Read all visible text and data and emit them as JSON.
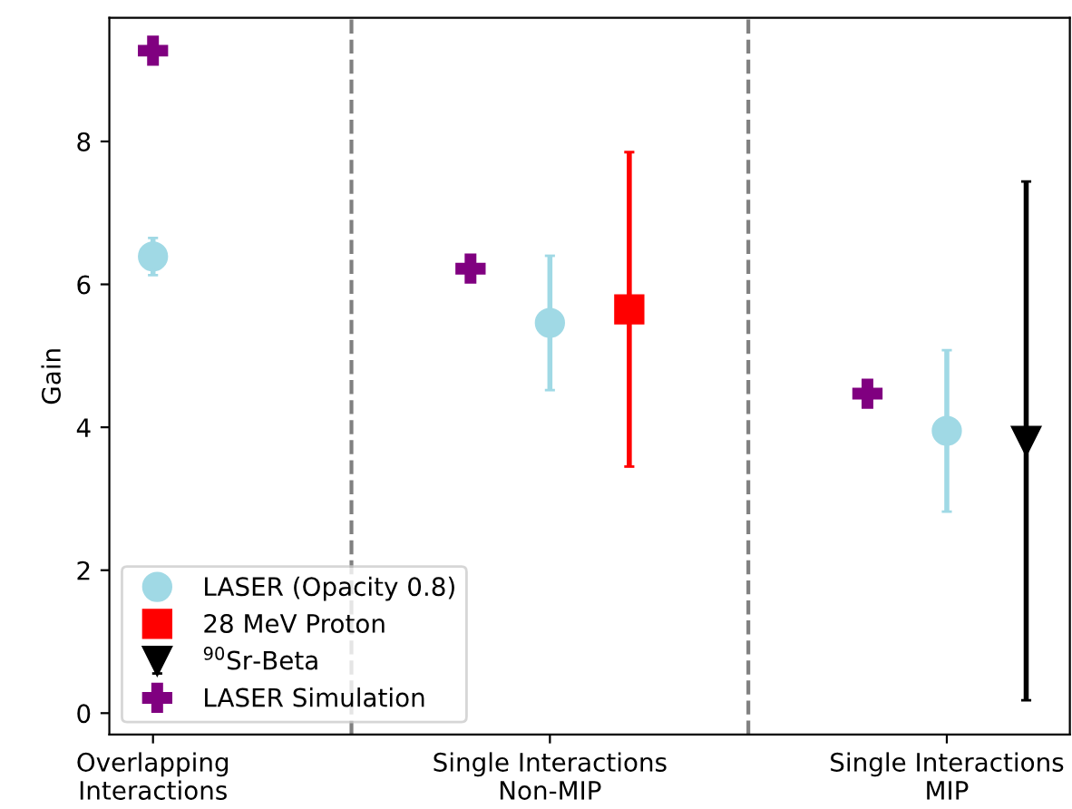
{
  "chart_data": {
    "type": "scatter",
    "ylabel": "Gain",
    "categories": [
      "Overlapping\nInteractions",
      null,
      null,
      null,
      null,
      "Single Interactions\nNon-MIP",
      null,
      null,
      null,
      null,
      "Single Interactions\nMIP",
      null
    ],
    "ylim": [
      -0.3,
      9.73
    ],
    "yticks": [
      0,
      2,
      4,
      6,
      8
    ],
    "series": [
      {
        "name": "LASER (Opacity 0.8)",
        "color": "#a0d9e5",
        "marker": "circle",
        "values": [
          6.39,
          null,
          null,
          null,
          null,
          5.46,
          null,
          null,
          null,
          null,
          3.95,
          null
        ],
        "errors": [
          0.26,
          null,
          null,
          null,
          null,
          0.94,
          null,
          null,
          null,
          null,
          1.13,
          null
        ]
      },
      {
        "name": "28 MeV Proton",
        "color": "#ff0000",
        "marker": "square",
        "values": [
          null,
          null,
          null,
          null,
          null,
          null,
          5.65,
          null,
          null,
          null,
          null,
          null
        ],
        "errors": [
          null,
          null,
          null,
          null,
          null,
          null,
          2.2,
          null,
          null,
          null,
          null,
          null
        ]
      },
      {
        "name": "$^{90}$Sr-Beta",
        "color": "#000000",
        "marker": "triangle",
        "values": [
          null,
          null,
          null,
          null,
          null,
          null,
          null,
          null,
          null,
          null,
          null,
          3.81
        ],
        "errors": [
          null,
          null,
          null,
          null,
          null,
          null,
          null,
          null,
          null,
          null,
          null,
          3.63
        ]
      },
      {
        "name": "LASER Simulation",
        "color": "#800080",
        "marker": "cross",
        "values": [
          9.27,
          null,
          null,
          null,
          6.22,
          null,
          null,
          null,
          null,
          4.47,
          null,
          null
        ]
      }
    ],
    "legend": "bottom left"
  }
}
